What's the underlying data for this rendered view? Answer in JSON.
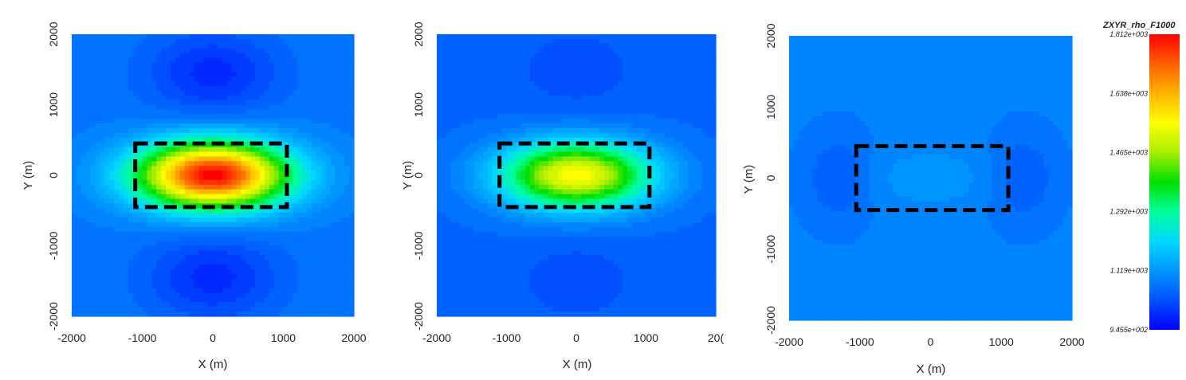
{
  "chart_data": [
    {
      "type": "heatmap",
      "panel": "left",
      "xlabel": "X (m)",
      "ylabel": "Y (m)",
      "xlim": [
        -2000,
        2000
      ],
      "ylim": [
        -2000,
        2000
      ],
      "xticks": [
        "-2000",
        "-1000",
        "0",
        "1000",
        "2000"
      ],
      "yticks": [
        "-2000",
        "-1000",
        "0",
        "1000",
        "2000"
      ],
      "background_value": 1080,
      "anomaly": {
        "center": [
          0,
          0
        ],
        "peak_value": 1812,
        "min_value": 990,
        "low_lobes_y": [
          1450,
          -1450
        ]
      },
      "dashed_rectangle": {
        "x": [
          -1100,
          1050
        ],
        "y": [
          -450,
          450
        ]
      }
    },
    {
      "type": "heatmap",
      "panel": "middle",
      "xlabel": "X (m)",
      "ylabel": "Y (m)",
      "xlim": [
        -2000,
        2000
      ],
      "ylim": [
        -2000,
        2000
      ],
      "xticks": [
        "-2000",
        "-1000",
        "0",
        "1000",
        "20("
      ],
      "yticks": [
        "-2000",
        "-1000",
        "0",
        "1000",
        "2000"
      ],
      "background_value": 1060,
      "anomaly": {
        "center": [
          0,
          0
        ],
        "peak_value": 1560,
        "min_value": 1030,
        "low_lobes_y": [
          1500,
          -1500
        ]
      },
      "dashed_rectangle": {
        "x": [
          -1100,
          1050
        ],
        "y": [
          -450,
          450
        ]
      }
    },
    {
      "type": "heatmap",
      "panel": "right",
      "xlabel": "X (m)",
      "ylabel": "Y (m)",
      "xlim": [
        -2000,
        2000
      ],
      "ylim": [
        -2000,
        2000
      ],
      "xticks": [
        "-2000",
        "-1000",
        "0",
        "1000",
        "2000"
      ],
      "yticks": [
        "-2000",
        "-1000",
        "0",
        "1000",
        "2000"
      ],
      "background_value": 1090,
      "anomaly": {
        "center": [
          0,
          0
        ],
        "peak_value": 1120,
        "min_value": 1040,
        "low_lobes_x": [
          -1300,
          1300
        ]
      },
      "dashed_rectangle": {
        "x": [
          -1050,
          1100
        ],
        "y": [
          -450,
          450
        ]
      }
    }
  ],
  "colorbar": {
    "title": "ZXYR_rho_F1000",
    "min": 945.5,
    "max": 1812,
    "ticks": [
      "1.812e+003",
      "1.638e+003",
      "1.465e+003",
      "1.292e+003",
      "1.119e+003",
      "9.455e+002"
    ],
    "tick_values": [
      1812,
      1638,
      1465,
      1292,
      1119,
      945.5
    ],
    "colors": [
      "#0000ff",
      "#0050ff",
      "#0096ff",
      "#00d8ff",
      "#00ff9a",
      "#00e000",
      "#a8ee00",
      "#ffff00",
      "#ffb400",
      "#ff6000",
      "#ff0000"
    ]
  }
}
